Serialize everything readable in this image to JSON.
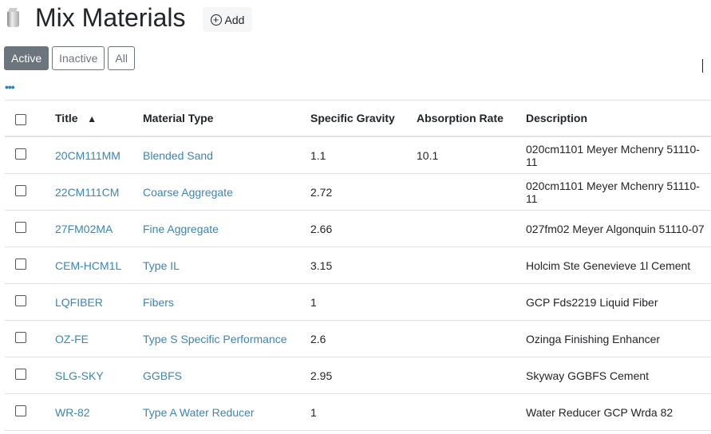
{
  "header": {
    "title": "Mix Materials",
    "add_label": "Add",
    "icon": "material-bag-icon"
  },
  "filters": [
    {
      "label": "Active",
      "active": true
    },
    {
      "label": "Inactive",
      "active": false
    },
    {
      "label": "All",
      "active": false
    }
  ],
  "more_label": "•••",
  "table": {
    "columns": [
      "Title",
      "Material Type",
      "Specific Gravity",
      "Absorption Rate",
      "Description"
    ],
    "sort_indicator": "▲",
    "rows": [
      {
        "title": "20CM111MM",
        "type": "Blended Sand",
        "sg": "1.1",
        "abs": "10.1",
        "desc": "020cm1101 Meyer Mchenry 51110-11"
      },
      {
        "title": "22CM111CM",
        "type": "Coarse Aggregate",
        "sg": "2.72",
        "abs": "",
        "desc": "020cm1101 Meyer Mchenry 51110-11"
      },
      {
        "title": "27FM02MA",
        "type": "Fine Aggregate",
        "sg": "2.66",
        "abs": "",
        "desc": "027fm02 Meyer Algonquin 51110-07"
      },
      {
        "title": "CEM-HCM1L",
        "type": "Type IL",
        "sg": "3.15",
        "abs": "",
        "desc": "Holcim Ste Genevieve 1l Cement"
      },
      {
        "title": "LQFIBER",
        "type": "Fibers",
        "sg": "1",
        "abs": "",
        "desc": "GCP Fds2219 Liquid Fiber"
      },
      {
        "title": "OZ-FE",
        "type": "Type S Specific Performance",
        "sg": "2.6",
        "abs": "",
        "desc": "Ozinga Finishing Enhancer"
      },
      {
        "title": "SLG-SKY",
        "type": "GGBFS",
        "sg": "2.95",
        "abs": "",
        "desc": "Skyway GGBFS Cement"
      },
      {
        "title": "WR-82",
        "type": "Type A Water Reducer",
        "sg": "1",
        "abs": "",
        "desc": "Water Reducer GCP Wrda 82"
      }
    ]
  }
}
